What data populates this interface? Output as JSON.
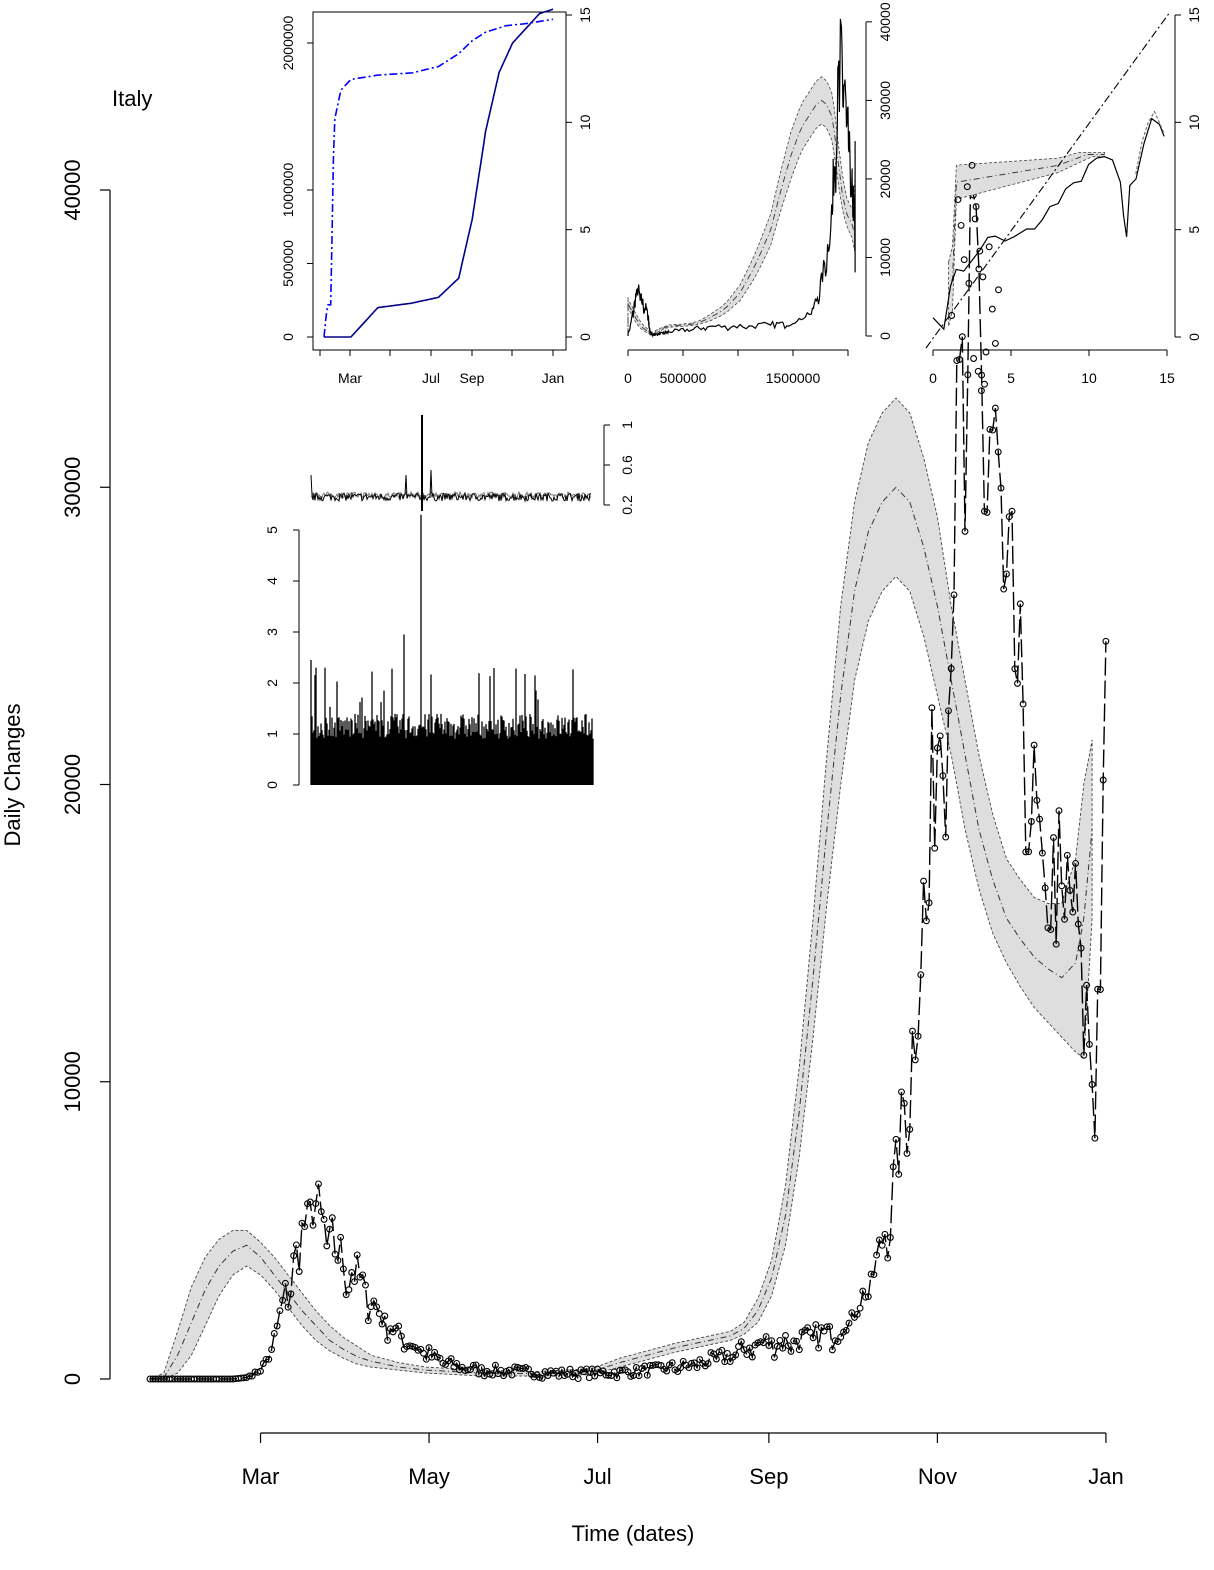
{
  "country_label": "Italy",
  "chart_data": [
    {
      "id": "main",
      "type": "scatter",
      "title": "",
      "xlabel": "Time (dates)",
      "ylabel": "Daily Changes",
      "xticks": [
        "Mar",
        "May",
        "Jul",
        "Sep",
        "Nov",
        "Jan"
      ],
      "xtick_days": [
        40,
        101,
        162,
        224,
        285,
        346
      ],
      "yticks": [
        0,
        10000,
        20000,
        30000,
        40000
      ],
      "ylim": [
        -800,
        42000
      ],
      "xlim_days": [
        0,
        350
      ],
      "observed_daily_cases": {
        "start_day": 0,
        "knots": [
          [
            0,
            0
          ],
          [
            30,
            0
          ],
          [
            35,
            50
          ],
          [
            40,
            300
          ],
          [
            44,
            1000
          ],
          [
            48,
            2500
          ],
          [
            52,
            3800
          ],
          [
            56,
            5200
          ],
          [
            59,
            6200
          ],
          [
            62,
            5200
          ],
          [
            66,
            4600
          ],
          [
            70,
            4000
          ],
          [
            75,
            3500
          ],
          [
            80,
            2700
          ],
          [
            85,
            2000
          ],
          [
            90,
            1500
          ],
          [
            96,
            1100
          ],
          [
            103,
            700
          ],
          [
            110,
            450
          ],
          [
            120,
            300
          ],
          [
            135,
            250
          ],
          [
            145,
            200
          ],
          [
            158,
            200
          ],
          [
            170,
            220
          ],
          [
            180,
            300
          ],
          [
            195,
            450
          ],
          [
            210,
            800
          ],
          [
            220,
            1200
          ],
          [
            232,
            1300
          ],
          [
            240,
            1400
          ],
          [
            250,
            1700
          ],
          [
            255,
            2300
          ],
          [
            258,
            2800
          ],
          [
            262,
            3600
          ],
          [
            266,
            5000
          ],
          [
            270,
            7000
          ],
          [
            274,
            10000
          ],
          [
            277,
            12000
          ],
          [
            280,
            16000
          ],
          [
            283,
            19500
          ],
          [
            286,
            23000
          ],
          [
            290,
            27500
          ],
          [
            293,
            31500
          ],
          [
            296,
            34000
          ],
          [
            299,
            37500
          ],
          [
            301,
            35500
          ],
          [
            304,
            32000
          ],
          [
            306,
            30500
          ],
          [
            310,
            27000
          ],
          [
            314,
            23500
          ],
          [
            318,
            20500
          ],
          [
            322,
            17500
          ],
          [
            326,
            16500
          ],
          [
            330,
            17000
          ],
          [
            334,
            16000
          ],
          [
            337,
            14500
          ],
          [
            340,
            11500
          ],
          [
            342,
            9000
          ],
          [
            344,
            16500
          ],
          [
            345,
            20000
          ],
          [
            346,
            22500
          ]
        ]
      },
      "model_band": {
        "knots": [
          [
            0,
            0,
            0,
            0
          ],
          [
            5,
            0,
            50,
            200
          ],
          [
            10,
            200,
            800,
            1600
          ],
          [
            15,
            800,
            1900,
            3100
          ],
          [
            20,
            1800,
            3000,
            4100
          ],
          [
            25,
            2800,
            3800,
            4700
          ],
          [
            30,
            3500,
            4300,
            5000
          ],
          [
            35,
            3800,
            4500,
            5000
          ],
          [
            40,
            3500,
            4100,
            4600
          ],
          [
            45,
            3000,
            3500,
            4100
          ],
          [
            50,
            2400,
            2900,
            3500
          ],
          [
            55,
            1800,
            2300,
            2900
          ],
          [
            60,
            1300,
            1800,
            2300
          ],
          [
            65,
            950,
            1300,
            1800
          ],
          [
            70,
            700,
            1000,
            1400
          ],
          [
            75,
            500,
            750,
            1100
          ],
          [
            80,
            400,
            600,
            800
          ],
          [
            90,
            300,
            400,
            550
          ],
          [
            100,
            200,
            300,
            400
          ],
          [
            120,
            100,
            200,
            300
          ],
          [
            140,
            100,
            180,
            250
          ],
          [
            160,
            150,
            250,
            350
          ],
          [
            170,
            400,
            550,
            700
          ],
          [
            180,
            650,
            800,
            950
          ],
          [
            190,
            900,
            1050,
            1200
          ],
          [
            200,
            1100,
            1250,
            1400
          ],
          [
            210,
            1300,
            1450,
            1600
          ],
          [
            215,
            1500,
            1700,
            1900
          ],
          [
            220,
            1900,
            2300,
            2700
          ],
          [
            225,
            2800,
            3400,
            4000
          ],
          [
            230,
            4500,
            5500,
            6500
          ],
          [
            235,
            7500,
            9000,
            10500
          ],
          [
            240,
            11500,
            13500,
            15500
          ],
          [
            245,
            16000,
            18500,
            21000
          ],
          [
            250,
            20000,
            23000,
            26000
          ],
          [
            255,
            23500,
            26500,
            29500
          ],
          [
            260,
            25500,
            28500,
            31500
          ],
          [
            265,
            26500,
            29500,
            32500
          ],
          [
            270,
            27000,
            30000,
            33000
          ],
          [
            275,
            26500,
            29500,
            32500
          ],
          [
            280,
            25000,
            28000,
            31000
          ],
          [
            285,
            23000,
            26000,
            29000
          ],
          [
            290,
            21000,
            23500,
            26000
          ],
          [
            295,
            18500,
            21000,
            23500
          ],
          [
            300,
            16500,
            18500,
            21000
          ],
          [
            305,
            15000,
            16800,
            19000
          ],
          [
            310,
            14000,
            15500,
            17500
          ],
          [
            315,
            13200,
            14800,
            16800
          ],
          [
            320,
            12500,
            14200,
            16200
          ],
          [
            325,
            12000,
            13800,
            16000
          ],
          [
            330,
            11500,
            13500,
            16000
          ],
          [
            335,
            11000,
            14000,
            17500
          ],
          [
            338,
            10800,
            15500,
            20000
          ],
          [
            341,
            15500,
            18500,
            21500
          ]
        ]
      }
    },
    {
      "id": "inset-cumulative",
      "type": "line",
      "xticks": [
        "Mar",
        "Jul",
        "Sep",
        "Jan"
      ],
      "yticks_left": [
        0,
        500000,
        1000000,
        2000000
      ],
      "yticks_right": [
        0,
        5,
        10,
        15
      ],
      "series": [
        {
          "style": "solid",
          "color": "#00008b",
          "axis": "left",
          "knots": [
            [
              0,
              0
            ],
            [
              40,
              0
            ],
            [
              60,
              100000
            ],
            [
              80,
              200000
            ],
            [
              130,
              230000
            ],
            [
              170,
              270000
            ],
            [
              200,
              400000
            ],
            [
              220,
              800000
            ],
            [
              240,
              1400000
            ],
            [
              260,
              1800000
            ],
            [
              280,
              2000000
            ],
            [
              300,
              2100000
            ],
            [
              320,
              2200000
            ],
            [
              340,
              2230000
            ]
          ]
        },
        {
          "style": "dashdot",
          "color": "#0000ff",
          "axis": "right",
          "knots": [
            [
              0,
              0
            ],
            [
              5,
              1.5
            ],
            [
              10,
              1.5
            ],
            [
              15,
              10
            ],
            [
              25,
              11.5
            ],
            [
              40,
              12
            ],
            [
              80,
              12.2
            ],
            [
              130,
              12.3
            ],
            [
              170,
              12.6
            ],
            [
              200,
              13.2
            ],
            [
              220,
              13.8
            ],
            [
              240,
              14.2
            ],
            [
              270,
              14.5
            ],
            [
              300,
              14.6
            ],
            [
              340,
              14.8
            ]
          ]
        }
      ]
    },
    {
      "id": "inset-phase",
      "type": "line",
      "xticks": [
        0,
        500000,
        1500000
      ],
      "yticks_right": [
        0,
        10000,
        20000,
        30000,
        40000
      ],
      "xlim": [
        0,
        2100000
      ],
      "ylim": [
        0,
        41000
      ]
    },
    {
      "id": "inset-diag",
      "type": "line",
      "xticks": [
        0,
        5,
        10,
        15
      ],
      "yticks_right": [
        0,
        5,
        10,
        15
      ],
      "xlim": [
        0,
        15
      ],
      "ylim": [
        0,
        15
      ]
    },
    {
      "id": "inset-residual-top",
      "type": "line",
      "yticks": [
        0.2,
        0.6,
        1.0
      ],
      "ylim": [
        0.1,
        1.1
      ]
    },
    {
      "id": "inset-residual-bars",
      "type": "bar",
      "yticks": [
        0,
        1,
        2,
        3,
        4,
        5
      ],
      "ylim": [
        0,
        5
      ]
    }
  ]
}
